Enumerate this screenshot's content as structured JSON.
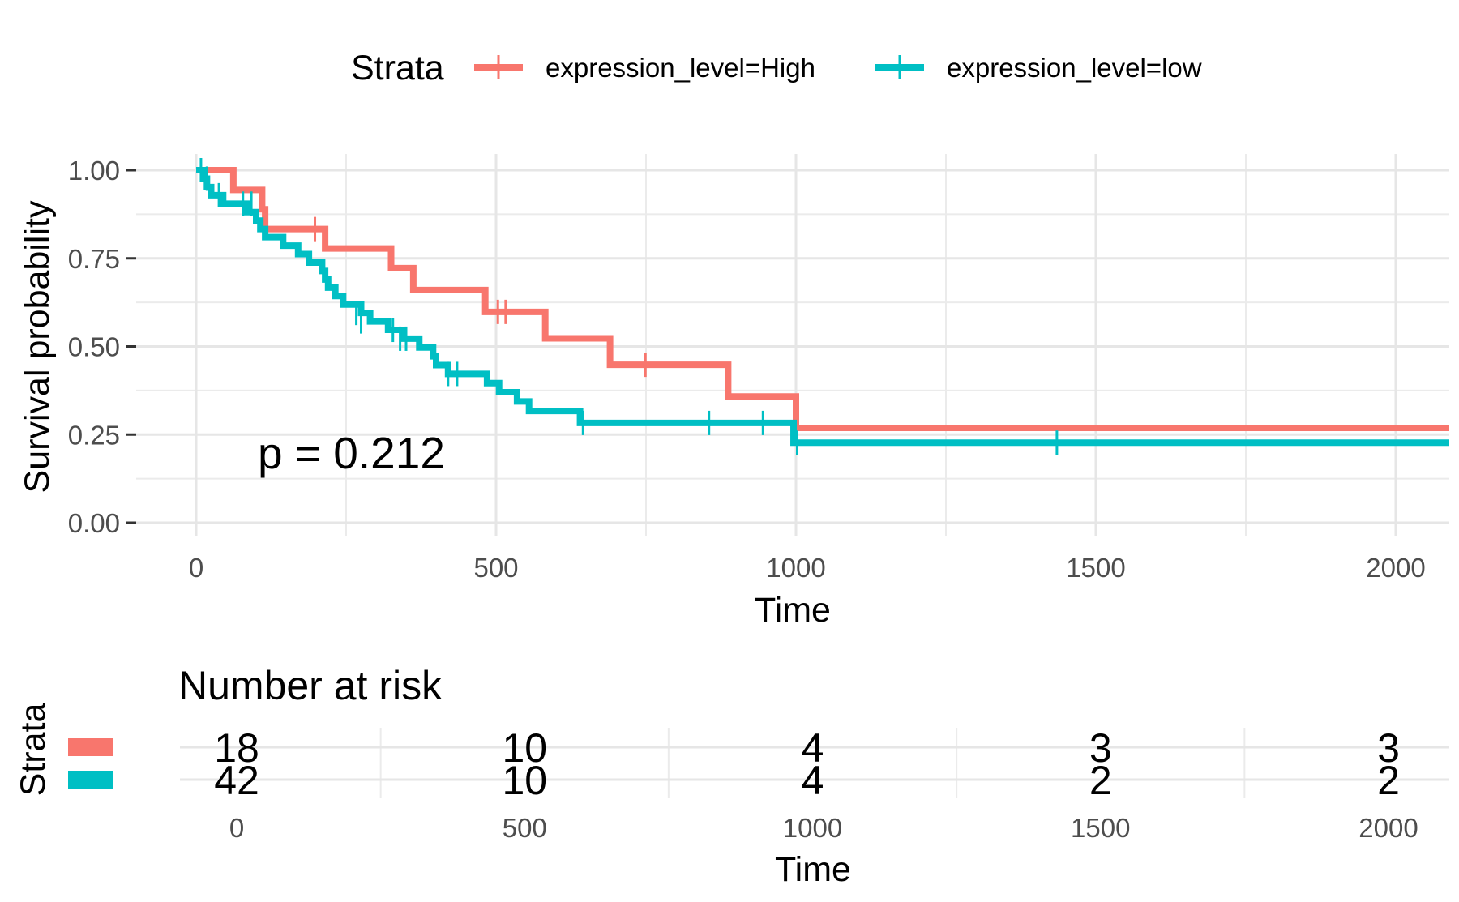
{
  "chart_data": [
    {
      "type": "line",
      "subtype": "kaplan-meier",
      "xlabel": "Time",
      "ylabel": "Survival probability",
      "xlim": [
        -100,
        2100
      ],
      "ylim": [
        -0.05,
        1.05
      ],
      "x_ticks": [
        0,
        500,
        1000,
        1500,
        2000
      ],
      "x_tick_labels": [
        "0",
        "500",
        "1000",
        "1500",
        "2000"
      ],
      "y_ticks": [
        0,
        0.25,
        0.5,
        0.75,
        1.0
      ],
      "y_tick_labels": [
        "0.00",
        "0.25",
        "0.50",
        "0.75",
        "1.00"
      ],
      "grid": true,
      "legend": {
        "title": "Strata",
        "position": "top",
        "entries": [
          "expression_level=High",
          "expression_level=low"
        ]
      },
      "annotation": "p = 0.212",
      "series": [
        {
          "name": "expression_level=High",
          "color": "#F8766D",
          "steps": [
            [
              0,
              1.0
            ],
            [
              62,
              0.944
            ],
            [
              110,
              0.889
            ],
            [
              115,
              0.833
            ],
            [
              215,
              0.778
            ],
            [
              325,
              0.722
            ],
            [
              362,
              0.66
            ],
            [
              482,
              0.598
            ],
            [
              582,
              0.523
            ],
            [
              690,
              0.448
            ],
            [
              887,
              0.358
            ],
            [
              1000,
              0.269
            ],
            [
              2100,
              0.269
            ]
          ],
          "censored": [
            [
              198,
              0.833
            ],
            [
              503,
              0.598
            ],
            [
              516,
              0.598
            ],
            [
              749,
              0.448
            ]
          ]
        },
        {
          "name": "expression_level=low",
          "color": "#00BFC4",
          "steps": [
            [
              0,
              1.0
            ],
            [
              12,
              0.976
            ],
            [
              18,
              0.952
            ],
            [
              25,
              0.929
            ],
            [
              45,
              0.905
            ],
            [
              85,
              0.881
            ],
            [
              100,
              0.857
            ],
            [
              107,
              0.833
            ],
            [
              115,
              0.81
            ],
            [
              145,
              0.786
            ],
            [
              170,
              0.762
            ],
            [
              188,
              0.738
            ],
            [
              210,
              0.714
            ],
            [
              215,
              0.69
            ],
            [
              220,
              0.667
            ],
            [
              232,
              0.643
            ],
            [
              245,
              0.619
            ],
            [
              275,
              0.595
            ],
            [
              290,
              0.571
            ],
            [
              320,
              0.547
            ],
            [
              345,
              0.522
            ],
            [
              372,
              0.497
            ],
            [
              395,
              0.472
            ],
            [
              400,
              0.447
            ],
            [
              420,
              0.422
            ],
            [
              485,
              0.396
            ],
            [
              505,
              0.37
            ],
            [
              535,
              0.344
            ],
            [
              555,
              0.317
            ],
            [
              640,
              0.283
            ],
            [
              996,
              0.227
            ],
            [
              2100,
              0.227
            ]
          ],
          "censored": [
            [
              8,
              1.0
            ],
            [
              18,
              0.976
            ],
            [
              38,
              0.929
            ],
            [
              78,
              0.905
            ],
            [
              92,
              0.905
            ],
            [
              267,
              0.595
            ],
            [
              275,
              0.571
            ],
            [
              328,
              0.547
            ],
            [
              340,
              0.522
            ],
            [
              350,
              0.522
            ],
            [
              420,
              0.422
            ],
            [
              435,
              0.422
            ],
            [
              645,
              0.283
            ],
            [
              855,
              0.283
            ],
            [
              945,
              0.283
            ],
            [
              1002,
              0.227
            ],
            [
              1435,
              0.227
            ]
          ]
        }
      ]
    },
    {
      "type": "table",
      "title": "Number at risk",
      "ylabel": "Strata",
      "xlabel": "Time",
      "x_ticks": [
        0,
        500,
        1000,
        1500,
        2000
      ],
      "x_tick_labels": [
        "0",
        "500",
        "1000",
        "1500",
        "2000"
      ],
      "rows": [
        {
          "name": "expression_level=High",
          "color": "#F8766D",
          "values": [
            "18",
            "10",
            "4",
            "3",
            "3"
          ]
        },
        {
          "name": "expression_level=low",
          "color": "#00BFC4",
          "values": [
            "42",
            "10",
            "4",
            "2",
            "2"
          ]
        }
      ]
    }
  ]
}
